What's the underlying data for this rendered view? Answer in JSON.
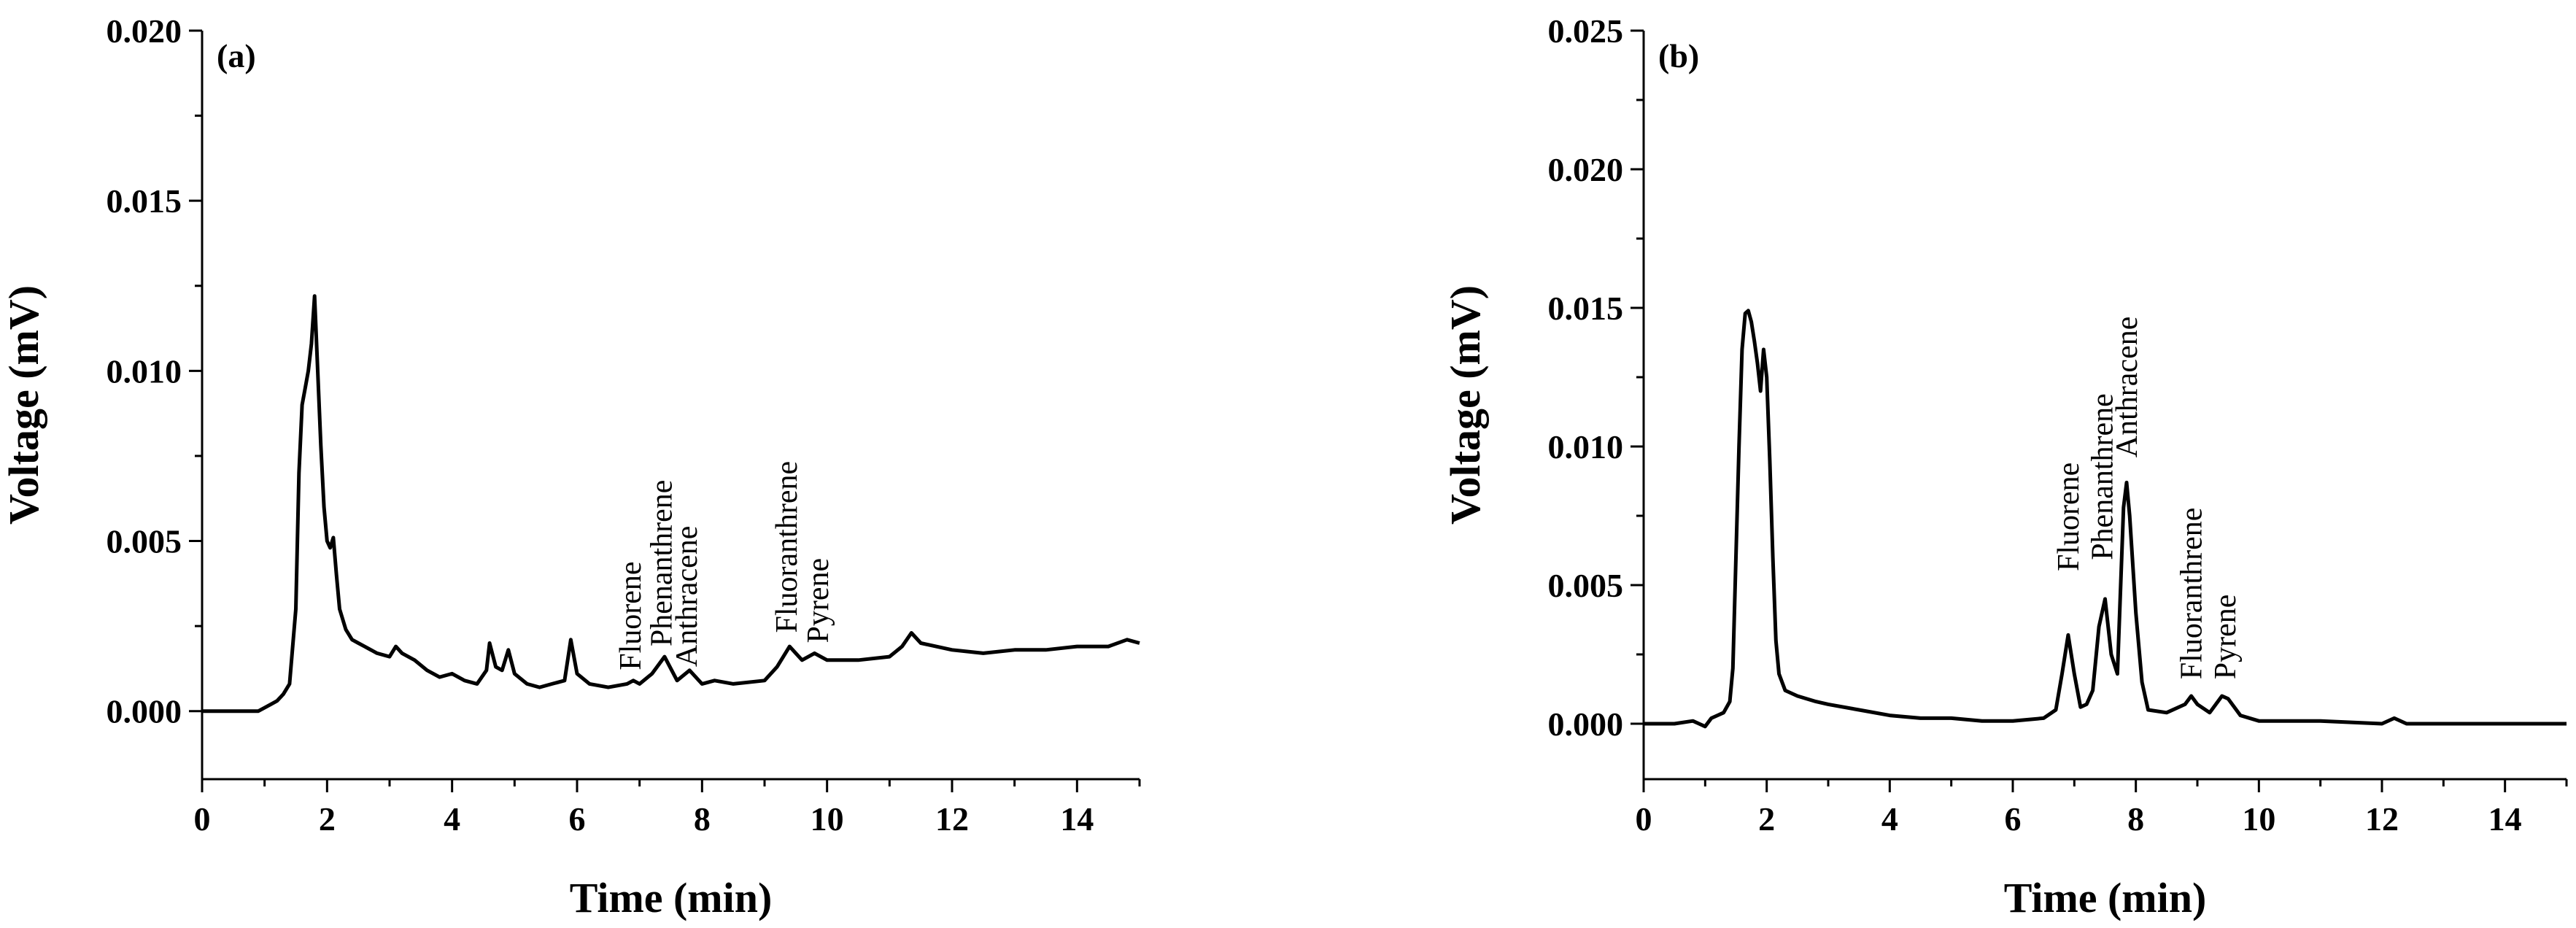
{
  "chart_data": [
    {
      "type": "line",
      "panel_label": "(a)",
      "xlabel": "Time (min)",
      "ylabel": "Voltage (mV)",
      "xlim": [
        0,
        15
      ],
      "ylim": [
        -0.002,
        0.02
      ],
      "xticks": [
        0,
        2,
        4,
        6,
        8,
        10,
        12,
        14
      ],
      "yticks": [
        0.0,
        0.005,
        0.01,
        0.015,
        0.02
      ],
      "ytick_labels": [
        "0.000",
        "0.005",
        "0.010",
        "0.015",
        "0.020"
      ],
      "grid": false,
      "series": [
        {
          "x": [
            0,
            0.5,
            0.9,
            1.0,
            1.1,
            1.2,
            1.3,
            1.4,
            1.5,
            1.55,
            1.6,
            1.65,
            1.7,
            1.75,
            1.8,
            1.85,
            1.9,
            1.95,
            2.0,
            2.05,
            2.1,
            2.15,
            2.2,
            2.3,
            2.4,
            2.5,
            2.6,
            2.8,
            3.0,
            3.1,
            3.2,
            3.4,
            3.6,
            3.8,
            4.0,
            4.2,
            4.4,
            4.55,
            4.6,
            4.7,
            4.8,
            4.9,
            5.0,
            5.2,
            5.4,
            5.6,
            5.8,
            5.9,
            6.0,
            6.2,
            6.5,
            6.8,
            6.9,
            7.0,
            7.2,
            7.4,
            7.6,
            7.8,
            8.0,
            8.2,
            8.5,
            9.0,
            9.2,
            9.4,
            9.6,
            9.8,
            10.0,
            10.5,
            11.0,
            11.2,
            11.35,
            11.5,
            12.0,
            12.5,
            13.0,
            13.5,
            14.0,
            14.5,
            14.8,
            15.0
          ],
          "y": [
            0.0,
            0.0,
            0.0,
            0.0001,
            0.0002,
            0.0003,
            0.0005,
            0.0008,
            0.003,
            0.007,
            0.009,
            0.0095,
            0.01,
            0.0108,
            0.0122,
            0.01,
            0.0078,
            0.006,
            0.005,
            0.0048,
            0.0051,
            0.004,
            0.003,
            0.0024,
            0.0021,
            0.002,
            0.0019,
            0.0017,
            0.0016,
            0.0019,
            0.0017,
            0.0015,
            0.0012,
            0.001,
            0.0011,
            0.0009,
            0.0008,
            0.0012,
            0.002,
            0.0013,
            0.0012,
            0.0018,
            0.0011,
            0.0008,
            0.0007,
            0.0008,
            0.0009,
            0.0021,
            0.0011,
            0.0008,
            0.0007,
            0.0008,
            0.0009,
            0.0008,
            0.0011,
            0.0016,
            0.0009,
            0.0012,
            0.0008,
            0.0009,
            0.0008,
            0.0009,
            0.0013,
            0.0019,
            0.0015,
            0.0017,
            0.0015,
            0.0015,
            0.0016,
            0.0019,
            0.0023,
            0.002,
            0.0018,
            0.0017,
            0.0018,
            0.0018,
            0.0019,
            0.0019,
            0.0021,
            0.002
          ]
        }
      ],
      "annotations": [
        {
          "text": "Fluorene",
          "x": 6.85,
          "y": 0.0012
        },
        {
          "text": "Phenanthrene",
          "x": 7.35,
          "y": 0.0019
        },
        {
          "text": "Anthracene",
          "x": 7.75,
          "y": 0.0013
        },
        {
          "text": "Fluoranthrene",
          "x": 9.35,
          "y": 0.0023
        },
        {
          "text": "Pyrene",
          "x": 9.85,
          "y": 0.002
        }
      ]
    },
    {
      "type": "line",
      "panel_label": "(b)",
      "xlabel": "Time (min)",
      "ylabel": "Voltage (mV)",
      "xlim": [
        0,
        15
      ],
      "ylim": [
        -0.002,
        0.025
      ],
      "xticks": [
        0,
        2,
        4,
        6,
        8,
        10,
        12,
        14
      ],
      "yticks": [
        0.0,
        0.005,
        0.01,
        0.015,
        0.02,
        0.025
      ],
      "ytick_labels": [
        "0.000",
        "0.005",
        "0.010",
        "0.015",
        "0.020",
        "0.025"
      ],
      "grid": false,
      "series": [
        {
          "x": [
            0,
            0.5,
            0.8,
            0.9,
            1.0,
            1.1,
            1.2,
            1.3,
            1.4,
            1.45,
            1.5,
            1.55,
            1.6,
            1.65,
            1.7,
            1.75,
            1.8,
            1.85,
            1.9,
            1.95,
            2.0,
            2.05,
            2.1,
            2.15,
            2.2,
            2.3,
            2.5,
            2.8,
            3.0,
            3.5,
            4.0,
            4.5,
            5.0,
            5.5,
            6.0,
            6.5,
            6.7,
            6.8,
            6.9,
            7.0,
            7.1,
            7.2,
            7.3,
            7.4,
            7.5,
            7.6,
            7.7,
            7.8,
            7.85,
            7.9,
            8.0,
            8.1,
            8.2,
            8.5,
            8.8,
            8.9,
            9.0,
            9.2,
            9.4,
            9.5,
            9.7,
            10.0,
            11.0,
            12.0,
            12.2,
            12.4,
            13.0,
            14.0,
            15.0
          ],
          "y": [
            0.0,
            0.0,
            0.0001,
            0.0,
            -0.0001,
            0.0002,
            0.0003,
            0.0004,
            0.0008,
            0.002,
            0.006,
            0.01,
            0.0135,
            0.0148,
            0.0149,
            0.0145,
            0.0138,
            0.013,
            0.012,
            0.0135,
            0.0125,
            0.0095,
            0.006,
            0.003,
            0.0018,
            0.0012,
            0.001,
            0.0008,
            0.0007,
            0.0005,
            0.0003,
            0.0002,
            0.0002,
            0.0001,
            0.0001,
            0.0002,
            0.0005,
            0.0018,
            0.0032,
            0.0018,
            0.0006,
            0.0007,
            0.0012,
            0.0035,
            0.0045,
            0.0025,
            0.0018,
            0.0078,
            0.0087,
            0.0075,
            0.004,
            0.0015,
            0.0005,
            0.0004,
            0.0007,
            0.001,
            0.0007,
            0.0004,
            0.001,
            0.0009,
            0.0003,
            0.0001,
            0.0001,
            0.0,
            0.0002,
            0.0,
            0.0,
            0.0,
            0.0
          ]
        }
      ],
      "annotations": [
        {
          "text": "Fluorene",
          "x": 6.9,
          "y": 0.0055
        },
        {
          "text": "Phenanthrene",
          "x": 7.45,
          "y": 0.0059
        },
        {
          "text": "Anthracene",
          "x": 7.85,
          "y": 0.0096
        },
        {
          "text": "Fluoranthrene",
          "x": 8.9,
          "y": 0.0016
        },
        {
          "text": "Pyrene",
          "x": 9.45,
          "y": 0.0016
        }
      ]
    }
  ]
}
